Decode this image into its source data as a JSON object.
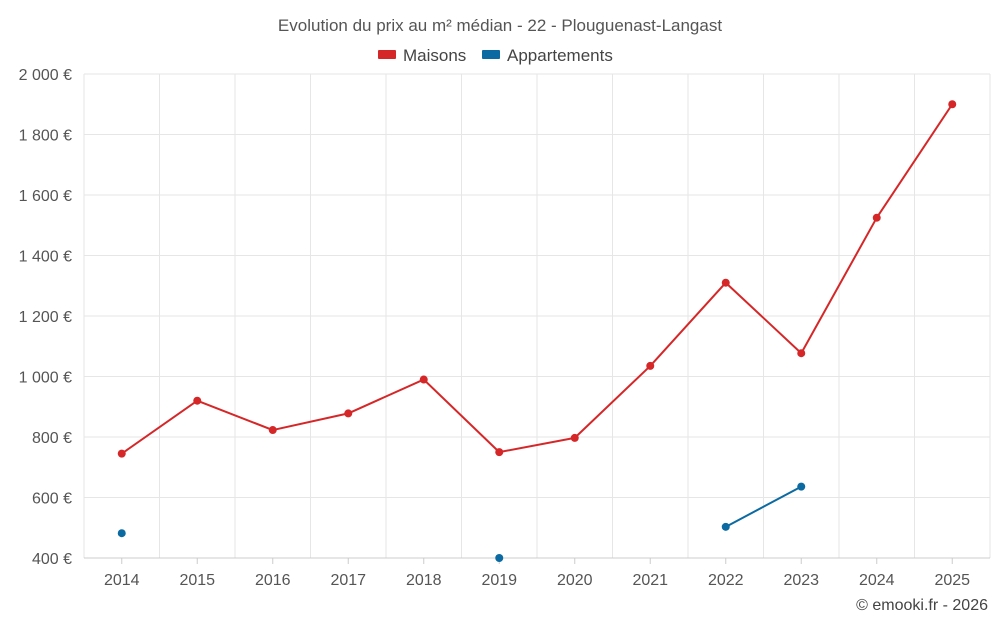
{
  "chart_data": {
    "type": "line",
    "title": "Evolution du prix au m² médian - 22 - Plouguenast-Langast",
    "categories": [
      "2014",
      "2015",
      "2016",
      "2017",
      "2018",
      "2019",
      "2020",
      "2021",
      "2022",
      "2023",
      "2024",
      "2025"
    ],
    "series": [
      {
        "name": "Maisons",
        "color": "#d62728",
        "values": [
          745,
          920,
          823,
          878,
          990,
          750,
          797,
          1035,
          1310,
          1077,
          1525,
          1900
        ]
      },
      {
        "name": "Appartements",
        "color": "#0b6aa2",
        "values": [
          482,
          null,
          null,
          null,
          null,
          400,
          null,
          null,
          503,
          636,
          null,
          null
        ]
      }
    ],
    "ylim": [
      400,
      2000
    ],
    "yticks": [
      400,
      600,
      800,
      1000,
      1200,
      1400,
      1600,
      1800,
      2000
    ],
    "ytick_labels": [
      "400 €",
      "600 €",
      "800 €",
      "1 000 €",
      "1 200 €",
      "1 400 €",
      "1 600 €",
      "1 800 €",
      "2 000 €"
    ],
    "grid": true,
    "legend_position": "top-center",
    "credit": "© emooki.fr - 2026"
  }
}
